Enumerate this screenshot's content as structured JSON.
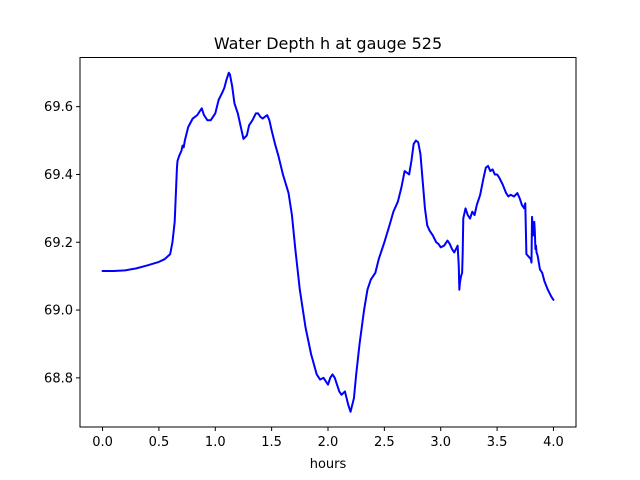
{
  "chart_data": {
    "type": "line",
    "title": "Water Depth h at gauge 525",
    "xlabel": "hours",
    "ylabel": "",
    "xlim": [
      -0.2,
      4.2
    ],
    "ylim": [
      68.655,
      69.745
    ],
    "xticks": [
      0.0,
      0.5,
      1.0,
      1.5,
      2.0,
      2.5,
      3.0,
      3.5,
      4.0
    ],
    "xtick_labels": [
      "0.0",
      "0.5",
      "1.0",
      "1.5",
      "2.0",
      "2.5",
      "3.0",
      "3.5",
      "4.0"
    ],
    "yticks": [
      68.8,
      69.0,
      69.2,
      69.4,
      69.6
    ],
    "ytick_labels": [
      "68.8",
      "69.0",
      "69.2",
      "69.4",
      "69.6"
    ],
    "grid": false,
    "series": [
      {
        "color": "#0000ff",
        "x": [
          0.0,
          0.1,
          0.2,
          0.3,
          0.4,
          0.5,
          0.55,
          0.6,
          0.62,
          0.64,
          0.66,
          0.665,
          0.68,
          0.7,
          0.71,
          0.72,
          0.73,
          0.76,
          0.8,
          0.84,
          0.86,
          0.88,
          0.9,
          0.93,
          0.96,
          1.0,
          1.03,
          1.06,
          1.08,
          1.1,
          1.12,
          1.13,
          1.15,
          1.17,
          1.2,
          1.22,
          1.25,
          1.28,
          1.3,
          1.33,
          1.36,
          1.38,
          1.4,
          1.42,
          1.44,
          1.46,
          1.48,
          1.5,
          1.53,
          1.56,
          1.6,
          1.65,
          1.68,
          1.71,
          1.75,
          1.8,
          1.85,
          1.9,
          1.93,
          1.96,
          2.0,
          2.02,
          2.04,
          2.06,
          2.08,
          2.1,
          2.12,
          2.15,
          2.18,
          2.2,
          2.23,
          2.25,
          2.28,
          2.32,
          2.35,
          2.38,
          2.42,
          2.45,
          2.5,
          2.55,
          2.58,
          2.62,
          2.65,
          2.68,
          2.7,
          2.72,
          2.74,
          2.76,
          2.78,
          2.8,
          2.82,
          2.84,
          2.86,
          2.88,
          2.9,
          2.93,
          2.96,
          2.98,
          3.0,
          3.03,
          3.06,
          3.08,
          3.1,
          3.12,
          3.15,
          3.16,
          3.165,
          3.17,
          3.18,
          3.19,
          3.195,
          3.2,
          3.22,
          3.24,
          3.25,
          3.26,
          3.28,
          3.3,
          3.32,
          3.35,
          3.38,
          3.4,
          3.42,
          3.44,
          3.46,
          3.48,
          3.5,
          3.52,
          3.55,
          3.58,
          3.6,
          3.62,
          3.65,
          3.68,
          3.7,
          3.72,
          3.74,
          3.75,
          3.76,
          3.8,
          3.805,
          3.81,
          3.82,
          3.825,
          3.83,
          3.835,
          3.84,
          3.845,
          3.85,
          3.86,
          3.88,
          3.9,
          3.92,
          3.95,
          3.98,
          4.0
        ],
        "y": [
          69.115,
          69.115,
          69.117,
          69.123,
          69.132,
          69.142,
          69.15,
          69.165,
          69.2,
          69.26,
          69.42,
          69.44,
          69.455,
          69.47,
          69.485,
          69.48,
          69.5,
          69.54,
          69.565,
          69.575,
          69.585,
          69.595,
          69.575,
          69.56,
          69.56,
          69.58,
          69.62,
          69.64,
          69.655,
          69.68,
          69.7,
          69.695,
          69.66,
          69.61,
          69.58,
          69.55,
          69.505,
          69.515,
          69.545,
          69.56,
          69.58,
          69.58,
          69.57,
          69.565,
          69.57,
          69.575,
          69.56,
          69.53,
          69.49,
          69.455,
          69.4,
          69.345,
          69.28,
          69.18,
          69.06,
          68.95,
          68.87,
          68.81,
          68.795,
          68.8,
          68.78,
          68.8,
          68.81,
          68.8,
          68.78,
          68.76,
          68.75,
          68.76,
          68.72,
          68.7,
          68.74,
          68.81,
          68.9,
          69.0,
          69.06,
          69.09,
          69.11,
          69.15,
          69.2,
          69.255,
          69.29,
          69.32,
          69.36,
          69.41,
          69.405,
          69.4,
          69.44,
          69.49,
          69.5,
          69.495,
          69.46,
          69.38,
          69.3,
          69.25,
          69.235,
          69.22,
          69.2,
          69.195,
          69.185,
          69.19,
          69.205,
          69.195,
          69.18,
          69.17,
          69.19,
          69.13,
          69.06,
          69.08,
          69.1,
          69.11,
          69.17,
          69.27,
          69.3,
          69.28,
          69.275,
          69.27,
          69.29,
          69.28,
          69.31,
          69.34,
          69.39,
          69.42,
          69.425,
          69.41,
          69.415,
          69.4,
          69.4,
          69.39,
          69.37,
          69.345,
          69.335,
          69.34,
          69.335,
          69.345,
          69.33,
          69.31,
          69.3,
          69.315,
          69.165,
          69.15,
          69.14,
          69.275,
          69.22,
          69.25,
          69.26,
          69.23,
          69.18,
          69.19,
          69.17,
          69.16,
          69.12,
          69.11,
          69.085,
          69.06,
          69.04,
          69.03
        ]
      }
    ]
  }
}
